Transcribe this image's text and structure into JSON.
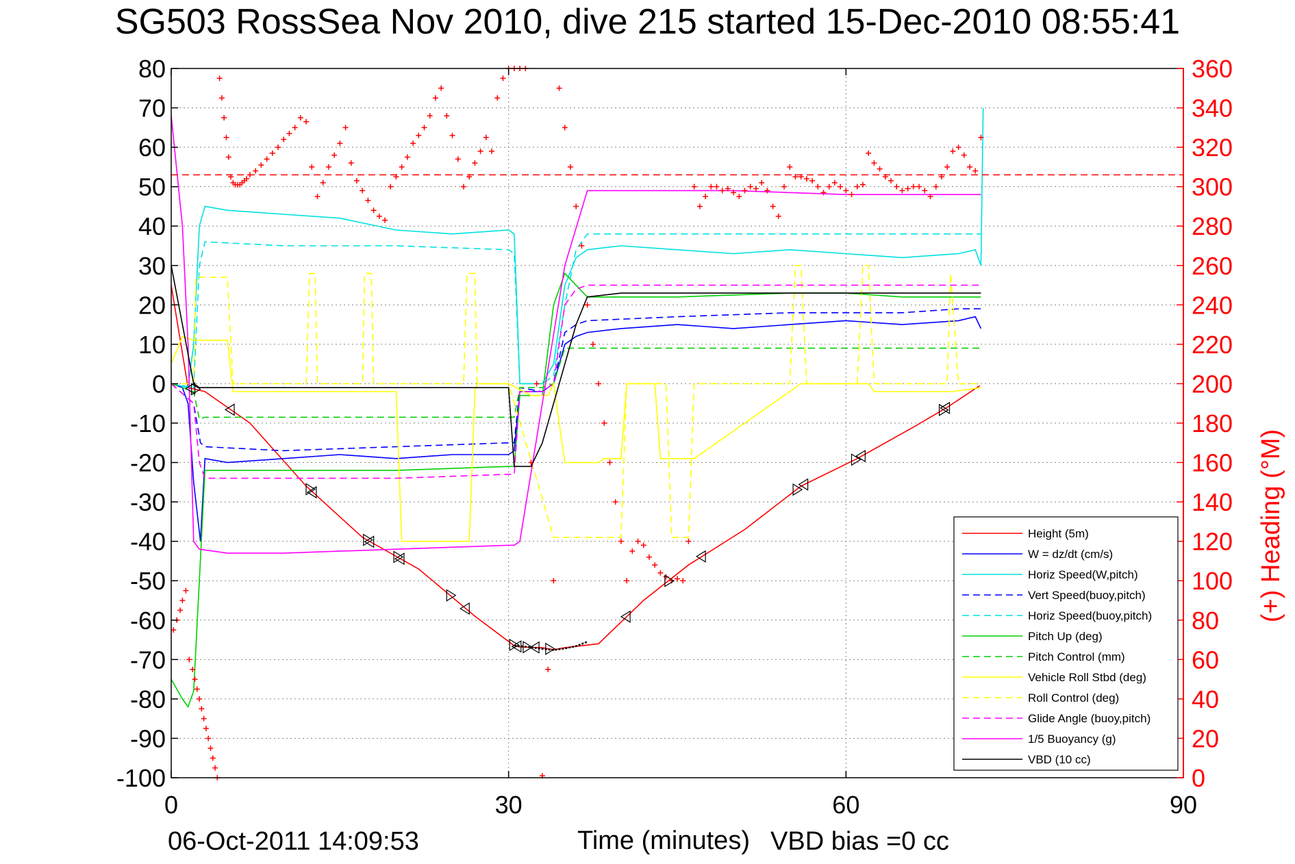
{
  "chart_data": {
    "type": "line",
    "title": "SG503 RossSea Nov 2010, dive 215 started 15-Dec-2010 08:55:41",
    "xlabel": "Time (minutes)",
    "ylabel": "",
    "y2label": "(+) Heading (°M)",
    "xlim": [
      0,
      90
    ],
    "ylim": [
      -100,
      80
    ],
    "y2lim": [
      0,
      360
    ],
    "xticks": [
      "0",
      "30",
      "60",
      "90"
    ],
    "yticks": [
      "80",
      "70",
      "60",
      "50",
      "40",
      "30",
      "20",
      "10",
      "0",
      "-10",
      "-20",
      "-30",
      "-40",
      "-50",
      "-60",
      "-70",
      "-80",
      "-90",
      "-100"
    ],
    "y2ticks": [
      "360",
      "340",
      "320",
      "300",
      "280",
      "260",
      "240",
      "220",
      "200",
      "180",
      "160",
      "140",
      "120",
      "100",
      "80",
      "60",
      "40",
      "20",
      "0"
    ],
    "grid": true,
    "legend_position": "lower-right",
    "series": [
      {
        "name": "Height (5m)",
        "color": "#ff0000",
        "dash": "solid",
        "axis": "left",
        "x": [
          0,
          1.5,
          3,
          7,
          12,
          17,
          22,
          27,
          30.5,
          31,
          33,
          34,
          35,
          38,
          42,
          46,
          51,
          56,
          61,
          66,
          69,
          71.9
        ],
        "y": [
          25,
          -1,
          -2,
          -10,
          -26,
          -39,
          -47,
          -59,
          -66.5,
          -66.8,
          -67,
          -67.5,
          -67,
          -66,
          -55,
          -46,
          -37,
          -26,
          -19,
          -11,
          -6,
          -0.5
        ]
      },
      {
        "name": "W = dz/dt (cm/s)",
        "color": "#0000ff",
        "dash": "solid",
        "axis": "left",
        "x": [
          0,
          1,
          1.5,
          2,
          2.6,
          3,
          5,
          10,
          15,
          20,
          25,
          30,
          30.5,
          31,
          32,
          33,
          34,
          35,
          36,
          37,
          40,
          45,
          50,
          55,
          60,
          65,
          70,
          71.5,
          72
        ],
        "y": [
          0,
          -1,
          -5,
          -25,
          -40,
          -19,
          -20,
          -19,
          -18,
          -19,
          -18,
          -18,
          -17,
          -2,
          -2,
          -2,
          0,
          10,
          12,
          13,
          14,
          15,
          14,
          15,
          16,
          15,
          16,
          17,
          14
        ]
      },
      {
        "name": "Horiz Speed(W,pitch)",
        "color": "#00e0e0",
        "dash": "solid",
        "axis": "left",
        "x": [
          0,
          1.5,
          2,
          2.5,
          3,
          5,
          10,
          15,
          20,
          25,
          30,
          30.5,
          31,
          32,
          33,
          34,
          35,
          36,
          37,
          40,
          45,
          50,
          55,
          60,
          65,
          70,
          71.5,
          72,
          72.2
        ],
        "y": [
          0,
          -1,
          10,
          40,
          45,
          44,
          43,
          42,
          39,
          38,
          39,
          38,
          0,
          0,
          0,
          5,
          25,
          32,
          34,
          35,
          34,
          33,
          34,
          33,
          32,
          33,
          34,
          30,
          70
        ]
      },
      {
        "name": "Vert Speed(buoy,pitch)",
        "color": "#0000ff",
        "dash": "dash",
        "axis": "left",
        "x": [
          0,
          2,
          2.6,
          3,
          10,
          20,
          30,
          30.5,
          31,
          33,
          34,
          35,
          36,
          37,
          45,
          55,
          60,
          65,
          70,
          72
        ],
        "y": [
          0,
          -5,
          -15,
          -16,
          -17,
          -16,
          -15,
          -15,
          -1,
          -2,
          0,
          13,
          15,
          16,
          17,
          18,
          18,
          18,
          19,
          19
        ]
      },
      {
        "name": "Horiz Speed(buoy,pitch)",
        "color": "#00e0e0",
        "dash": "dash",
        "axis": "left",
        "x": [
          0,
          2,
          2.5,
          3,
          10,
          20,
          30,
          30.5,
          31,
          33,
          34,
          35,
          36,
          37,
          45,
          55,
          60,
          65,
          70,
          72
        ],
        "y": [
          0,
          -1,
          30,
          36,
          35,
          35,
          34,
          33,
          0,
          0,
          2,
          20,
          34,
          38,
          38,
          38,
          38,
          38,
          38,
          38
        ]
      },
      {
        "name": "Pitch Up (deg)",
        "color": "#00d000",
        "dash": "solid",
        "axis": "left",
        "x": [
          0,
          1,
          1.5,
          2,
          2.5,
          3,
          10,
          20,
          30,
          30.5,
          31,
          33,
          34,
          35,
          36,
          37,
          45,
          55,
          60,
          65,
          70,
          72
        ],
        "y": [
          -75,
          -80,
          -82,
          -78,
          -50,
          -22,
          -22,
          -22,
          -21,
          -21,
          -3,
          -3,
          20,
          28,
          25,
          22,
          22,
          23,
          23,
          22,
          22,
          22
        ]
      },
      {
        "name": "Pitch Control (mm)",
        "color": "#00d000",
        "dash": "dash",
        "axis": "left",
        "x": [
          0,
          2,
          2.5,
          3,
          30,
          30.5,
          31,
          33,
          34,
          35,
          36,
          37,
          72
        ],
        "y": [
          0,
          -2,
          -9,
          -8.5,
          -8.5,
          -8.5,
          -1,
          -1,
          0,
          9,
          9,
          9,
          9
        ]
      },
      {
        "name": "Vehicle Roll Stbd (deg)",
        "color": "#ffff00",
        "dash": "solid",
        "axis": "left",
        "x": [
          0,
          1,
          2,
          2.2,
          5,
          5.5,
          12,
          12.5,
          17,
          17.5,
          20,
          20.5,
          26.5,
          27,
          27.2,
          30,
          32,
          33.5,
          34,
          35,
          38,
          38.5,
          40,
          40.5,
          43,
          43.5,
          46,
          46.5,
          56,
          56.5,
          62,
          62.5,
          69,
          69.5,
          72
        ],
        "y": [
          5,
          12,
          11,
          11,
          11,
          -2,
          -2,
          -2,
          -2,
          -2,
          -2,
          -40,
          -40,
          -2,
          0,
          0,
          -3,
          -3,
          0,
          -20,
          -20,
          -19,
          -19,
          0,
          0,
          -19,
          -19,
          -19,
          0,
          0,
          0,
          -2,
          -2,
          -2,
          -1
        ]
      },
      {
        "name": "Roll Control (deg)",
        "color": "#ffff00",
        "dash": "dash",
        "axis": "left",
        "x": [
          0,
          2,
          2.2,
          5,
          5.5,
          12,
          12.3,
          12.8,
          13,
          17,
          17.2,
          17.8,
          18,
          26,
          26.3,
          27,
          27.2,
          30,
          34,
          34.5,
          40,
          40.5,
          44,
          44.5,
          46,
          46.5,
          55,
          55.5,
          56,
          56.5,
          61,
          61.5,
          62,
          62.5,
          69,
          69.3,
          70,
          72
        ],
        "y": [
          0,
          0,
          27,
          27,
          0,
          0,
          28,
          28,
          0,
          0,
          28,
          28,
          0,
          0,
          28,
          28,
          0,
          0,
          -39,
          -39,
          -39,
          0,
          0,
          -39,
          -39,
          0,
          0,
          30,
          30,
          0,
          0,
          30,
          30,
          0,
          0,
          28,
          0,
          0
        ]
      },
      {
        "name": "Glide Angle (buoy,pitch)",
        "color": "#ff00ff",
        "dash": "dash",
        "axis": "left",
        "x": [
          0,
          2,
          2.5,
          3,
          10,
          20,
          30,
          30.5,
          31,
          33,
          34,
          35,
          36,
          37,
          45,
          55,
          60,
          65,
          70,
          72
        ],
        "y": [
          0,
          -5,
          -20,
          -24,
          -24,
          -24,
          -23,
          -23,
          -2,
          -2,
          0,
          20,
          24,
          25,
          25,
          25,
          25,
          25,
          25,
          25
        ]
      },
      {
        "name": "1/5 Buoyancy (g)",
        "color": "#ff00ff",
        "dash": "solid",
        "axis": "left",
        "x": [
          0,
          1,
          1.5,
          2,
          2.5,
          5,
          10,
          20,
          30,
          30.5,
          31,
          35,
          37,
          40,
          50,
          60,
          70,
          72
        ],
        "y": [
          68,
          40,
          10,
          -40,
          -42,
          -43,
          -43,
          -42,
          -41,
          -41,
          -40,
          30,
          49,
          49,
          49,
          48,
          48,
          48
        ]
      },
      {
        "name": "VBD (10 cc)",
        "color": "#000000",
        "dash": "solid",
        "axis": "left",
        "x": [
          0,
          1,
          2,
          2.5,
          3,
          10,
          20,
          30,
          30.5,
          31,
          32,
          33,
          34,
          35,
          36,
          37,
          40,
          50,
          60,
          70,
          72
        ],
        "y": [
          30,
          15,
          0,
          -1,
          -1,
          -1,
          -1,
          -1,
          -21,
          -21,
          -21,
          -15,
          -5,
          5,
          15,
          22,
          23,
          23,
          23,
          23,
          23
        ]
      }
    ],
    "heading_points": {
      "name": "(+) Heading",
      "color": "#ff0000",
      "marker": "+",
      "axis": "right",
      "x": [
        0.2,
        0.5,
        0.8,
        1.0,
        1.3,
        1.6,
        1.9,
        2.1,
        2.3,
        2.5,
        2.7,
        2.9,
        3.1,
        3.3,
        3.5,
        3.7,
        3.9,
        4.1,
        4.3,
        4.5,
        4.7,
        4.9,
        5.1,
        5.3,
        5.5,
        5.7,
        5.9,
        6.1,
        6.3,
        6.5,
        6.7,
        7,
        7.5,
        8,
        8.5,
        9,
        9.5,
        10,
        10.5,
        11,
        11.5,
        12,
        12.5,
        13,
        13.5,
        14,
        14.5,
        15,
        15.5,
        16,
        16.5,
        17,
        17.5,
        18,
        18.5,
        19,
        19.5,
        20,
        20.5,
        21,
        21.5,
        22,
        22.5,
        23,
        23.5,
        24,
        24.5,
        25,
        25.5,
        26,
        26.5,
        27,
        27.5,
        28,
        28.5,
        29,
        29.5,
        30,
        30.5,
        31,
        31.5,
        32,
        32.5,
        33,
        33.5,
        34,
        34.5,
        35,
        35.5,
        36,
        36.5,
        37,
        37.5,
        38,
        38.5,
        39,
        39.5,
        40,
        40.5,
        41,
        41.5,
        42,
        42.5,
        43,
        43.5,
        44,
        44.5,
        45,
        45.5,
        46,
        46.5,
        47,
        47.5,
        48,
        48.5,
        49,
        49.5,
        50,
        50.5,
        51,
        51.5,
        52,
        52.5,
        53,
        53.5,
        54,
        54.5,
        55,
        55.5,
        56,
        56.5,
        57,
        57.5,
        58,
        58.5,
        59,
        59.5,
        60,
        60.5,
        61,
        61.5,
        62,
        62.5,
        63,
        63.5,
        64,
        64.5,
        65,
        65.5,
        66,
        66.5,
        67,
        67.5,
        68,
        68.5,
        69,
        69.5,
        70,
        70.5,
        71,
        71.5,
        72
      ],
      "y": [
        75,
        80,
        85,
        90,
        95,
        60,
        55,
        50,
        45,
        40,
        35,
        30,
        25,
        20,
        15,
        10,
        5,
        0,
        355,
        345,
        335,
        325,
        315,
        305,
        302,
        301,
        301,
        301,
        302,
        303,
        304,
        306,
        308,
        311,
        314,
        317,
        320,
        324,
        327,
        330,
        335,
        333,
        310,
        295,
        302,
        310,
        316,
        322,
        330,
        312,
        303,
        298,
        293,
        288,
        285,
        283,
        300,
        305,
        310,
        315,
        322,
        326,
        330,
        336,
        345,
        350,
        336,
        326,
        314,
        300,
        305,
        312,
        318,
        325,
        318,
        345,
        355,
        360,
        360,
        360,
        360,
        160,
        200,
        1,
        55,
        100,
        350,
        330,
        310,
        290,
        270,
        240,
        220,
        200,
        180,
        160,
        140,
        120,
        100,
        115,
        120,
        118,
        112,
        108,
        104,
        102,
        100,
        101,
        100,
        120,
        300,
        290,
        295,
        300,
        300,
        298,
        299,
        297,
        295,
        298,
        300,
        299,
        302,
        298,
        290,
        285,
        300,
        310,
        305,
        305,
        304,
        303,
        300,
        297,
        300,
        302,
        300,
        298,
        296,
        300,
        301,
        317,
        312,
        309,
        305,
        303,
        300,
        298,
        299,
        300,
        300,
        298,
        295,
        300,
        305,
        310,
        318,
        320,
        316,
        310,
        308,
        325
      ]
    }
  },
  "legend": [
    "Height (5m)",
    "W = dz/dt (cm/s)",
    "Horiz Speed(W,pitch)",
    "Vert Speed(buoy,pitch)",
    "Horiz Speed(buoy,pitch)",
    "Pitch Up (deg)",
    "Pitch Control (mm)",
    "Vehicle Roll Stbd (deg)",
    "Roll Control (deg)",
    "Glide Angle (buoy,pitch)",
    "1/5 Buoyancy (g)",
    "VBD (10 cc)"
  ],
  "footer": {
    "print_date": "06-Oct-2011 14:09:53",
    "vbd_bias": "VBD bias =0 cc"
  }
}
